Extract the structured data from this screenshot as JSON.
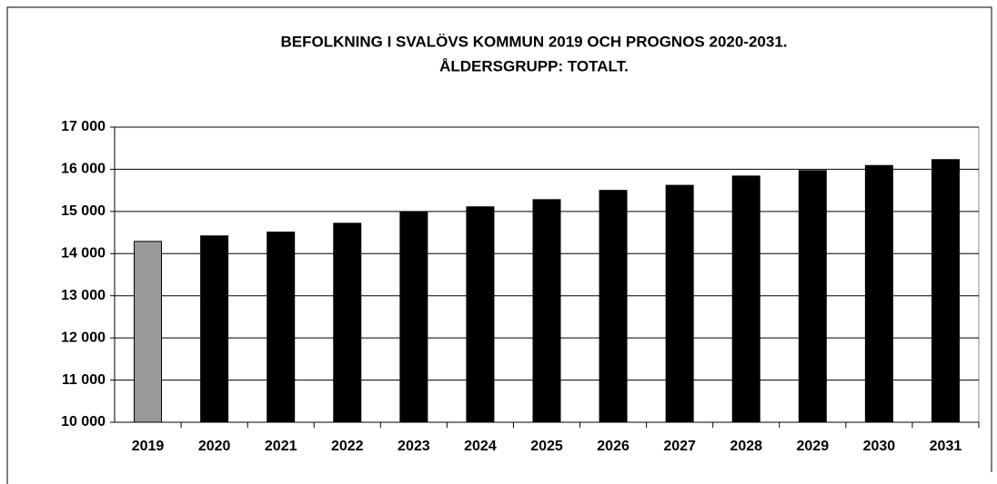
{
  "chart_data": {
    "type": "bar",
    "title": [
      "BEFOLKNING I SVALÖVS KOMMUN 2019 OCH PROGNOS 2020-2031.",
      "ÅLDERSGRUPP: TOTALT."
    ],
    "categories": [
      "2019",
      "2020",
      "2021",
      "2022",
      "2023",
      "2024",
      "2025",
      "2026",
      "2027",
      "2028",
      "2029",
      "2030",
      "2031"
    ],
    "values": [
      14290,
      14420,
      14510,
      14720,
      14990,
      15110,
      15280,
      15500,
      15620,
      15840,
      15970,
      16090,
      16230
    ],
    "colors": [
      "#999999",
      "#000000",
      "#000000",
      "#000000",
      "#000000",
      "#000000",
      "#000000",
      "#000000",
      "#000000",
      "#000000",
      "#000000",
      "#000000",
      "#000000"
    ],
    "ylim": [
      10000,
      17000
    ],
    "yticks": [
      {
        "value": 10000,
        "label": "10 000"
      },
      {
        "value": 11000,
        "label": "11 000"
      },
      {
        "value": 12000,
        "label": "12 000"
      },
      {
        "value": 13000,
        "label": "13 000"
      },
      {
        "value": 14000,
        "label": "14 000"
      },
      {
        "value": 15000,
        "label": "15 000"
      },
      {
        "value": 16000,
        "label": "16 000"
      },
      {
        "value": 17000,
        "label": "17 000"
      }
    ],
    "grid": true
  }
}
